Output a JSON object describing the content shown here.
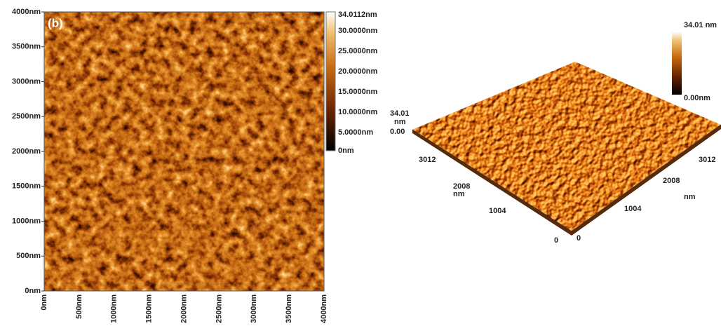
{
  "figure": {
    "panel_label": "(b)",
    "map2d": {
      "y_ticks": [
        "4000nm",
        "3500nm",
        "3000nm",
        "2500nm",
        "2000nm",
        "1500nm",
        "1000nm",
        "500nm",
        "0nm"
      ],
      "x_ticks": [
        "0nm",
        "500nm",
        "1000nm",
        "1500nm",
        "2000nm",
        "2500nm",
        "3000nm",
        "3500nm",
        "4000nm"
      ],
      "colorbar_ticks": [
        "34.0112nm",
        "30.0000nm",
        "25.0000nm",
        "20.0000nm",
        "15.0000nm",
        "10.0000nm",
        "5.0000nm",
        "0nm"
      ]
    },
    "view3d": {
      "colorbar_max": "34.01 nm",
      "colorbar_min": "0.00nm",
      "z_max": "34.01",
      "z_unit": "nm",
      "z_min": "0.00",
      "left_axis": [
        "3012",
        "2008",
        "nm",
        "1004",
        "0"
      ],
      "right_axis": [
        "0",
        "1004",
        "2008",
        "nm",
        "3012"
      ]
    }
  }
}
